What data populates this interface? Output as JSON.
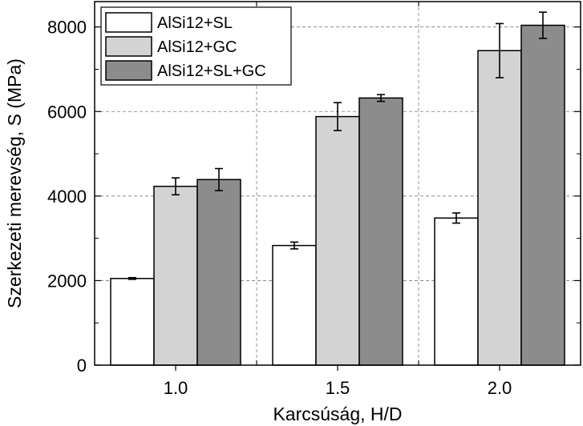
{
  "chart_data": {
    "type": "bar",
    "xlabel": "Karcsúság, H/D",
    "ylabel": "Szerkezeti merevség, S (MPa)",
    "categories": [
      "1.0",
      "1.5",
      "2.0"
    ],
    "ylim": [
      0,
      8600
    ],
    "yticks": [
      "0",
      "2000",
      "4000",
      "6000",
      "8000"
    ],
    "ytick_values": [
      0,
      2000,
      4000,
      6000,
      8000
    ],
    "grid": true,
    "legend_position": "top-left",
    "series": [
      {
        "name": "AlSi12+SL",
        "color": "#ffffff",
        "values": [
          2050,
          2830,
          3480
        ],
        "errors": [
          20,
          80,
          120
        ]
      },
      {
        "name": "AlSi12+GC",
        "color": "#d3d3d3",
        "values": [
          4230,
          5880,
          7440
        ],
        "errors": [
          200,
          330,
          640
        ]
      },
      {
        "name": "AlSi12+SL+GC",
        "color": "#8c8c8c",
        "values": [
          4390,
          6320,
          8040
        ],
        "errors": [
          260,
          80,
          310
        ]
      }
    ]
  }
}
